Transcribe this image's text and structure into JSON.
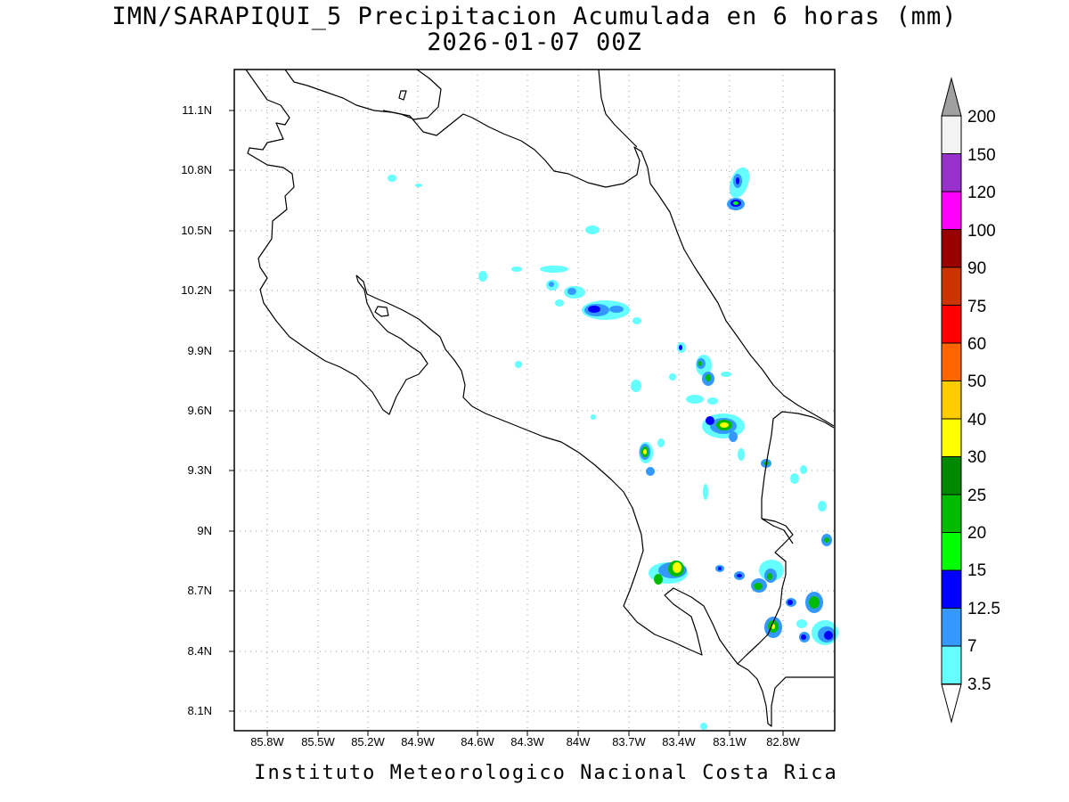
{
  "title_line1": "IMN/SARAPIQUI_5 Precipitacion Acumulada en 6 horas (mm)",
  "title_line2": "2026-01-07 00Z",
  "footer": "Instituto Meteorologico Nacional Costa Rica",
  "latitude_labels": [
    "11.1N",
    "10.8N",
    "10.5N",
    "10.2N",
    "9.9N",
    "9.6N",
    "9.3N",
    "9N",
    "8.7N",
    "8.4N",
    "8.1N"
  ],
  "longitude_labels": [
    "85.8W",
    "85.5W",
    "85.2W",
    "84.9W",
    "84.6W",
    "84.3W",
    "84W",
    "83.7W",
    "83.4W",
    "83.1W",
    "82.8W"
  ],
  "colorbar": {
    "levels": [
      "200",
      "150",
      "120",
      "100",
      "90",
      "75",
      "60",
      "50",
      "40",
      "30",
      "25",
      "20",
      "15",
      "12.5",
      "7",
      "3.5"
    ],
    "colors": [
      "#f4f4f4",
      "#9932cc",
      "#ff00ff",
      "#990000",
      "#cc3300",
      "#ff0000",
      "#ff6600",
      "#ffcc00",
      "#ffff00",
      "#008800",
      "#00bb00",
      "#00ff00",
      "#0000ff",
      "#3399ff",
      "#66ffff"
    ],
    "top_arrow_color": "#a0a0a0",
    "bottom_arrow_color": "#ffffff"
  },
  "map": {
    "extent_lon": [
      -86.12,
      -82.52
    ],
    "extent_lat": [
      8.0,
      11.3
    ],
    "grid": "dotted"
  }
}
